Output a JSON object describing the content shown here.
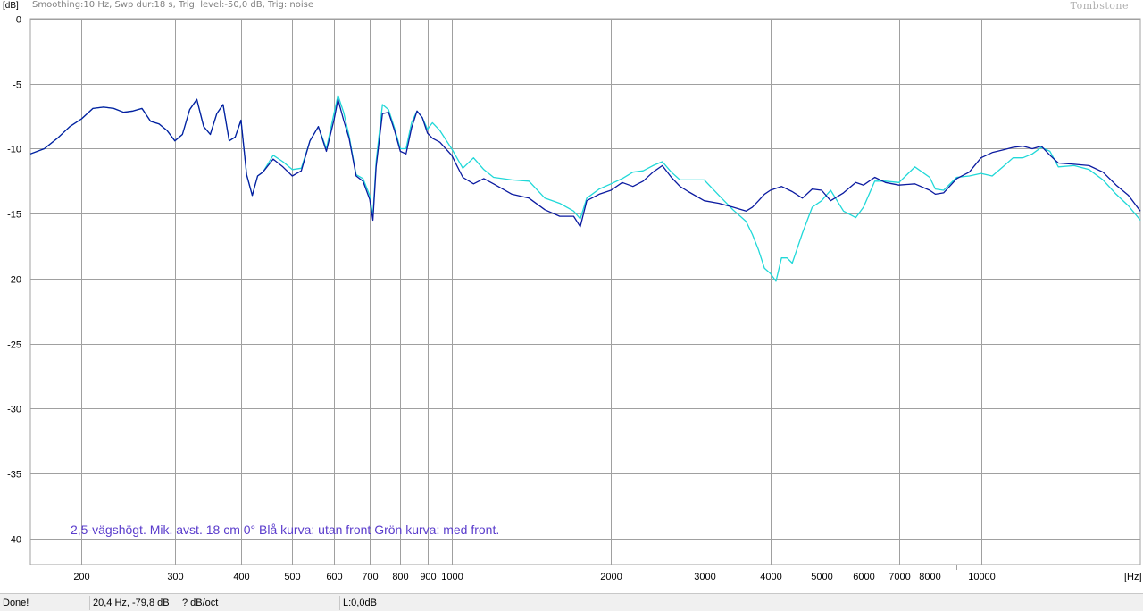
{
  "header": {
    "info": "Smoothing:10 Hz, Swp dur:18 s, Trig. level:-50,0 dB, Trig: noise",
    "brand": "Tombstone"
  },
  "status_bar": {
    "state": "Done!",
    "cursor": "20,4 Hz, -79,8 dB",
    "slope": "? dB/oct",
    "level": "L:0,0dB"
  },
  "colors": {
    "background": "#ffffff",
    "grid": "#a0a0a0",
    "axis_text": "#000000",
    "series_blue": "#0a1aa0",
    "series_cyan": "#20d8d8",
    "annotation": "#5a3ccc"
  },
  "chart_data": {
    "type": "line",
    "title": "",
    "xlabel": "",
    "ylabel": "",
    "x_unit": "[Hz]",
    "y_unit": "[dB]",
    "x_scale": "log",
    "xlim": [
      160,
      20000
    ],
    "ylim": [
      -42,
      0
    ],
    "grid": true,
    "y_ticks": [
      0,
      -5,
      -10,
      -15,
      -20,
      -25,
      -30,
      -35,
      -40
    ],
    "x_ticks": [
      200,
      300,
      400,
      500,
      600,
      700,
      800,
      900,
      1000,
      2000,
      3000,
      4000,
      5000,
      6000,
      7000,
      8000,
      10000
    ],
    "x_tick_labels": [
      "200",
      "300",
      "400",
      "500",
      "600",
      "700",
      "800",
      "900",
      "1000",
      "2000",
      "3000",
      "4000",
      "5000",
      "6000",
      "7000",
      "8000",
      "10000"
    ],
    "annotation": "2,5-vägshögt. Mik. avst. 18 cm 0° Blå kurva: utan front  Grön kurva: med front.",
    "series": [
      {
        "color": "#0a1aa0",
        "points": [
          [
            160,
            -10.4
          ],
          [
            170,
            -10
          ],
          [
            180,
            -9.2
          ],
          [
            190,
            -8.3
          ],
          [
            200,
            -7.7
          ],
          [
            210,
            -6.9
          ],
          [
            220,
            -6.8
          ],
          [
            230,
            -6.9
          ],
          [
            240,
            -7.2
          ],
          [
            250,
            -7.1
          ],
          [
            260,
            -6.9
          ],
          [
            270,
            -7.9
          ],
          [
            280,
            -8.1
          ],
          [
            290,
            -8.6
          ],
          [
            300,
            -9.4
          ],
          [
            310,
            -8.9
          ],
          [
            320,
            -7
          ],
          [
            330,
            -6.2
          ],
          [
            340,
            -8.3
          ],
          [
            350,
            -8.9
          ],
          [
            360,
            -7.3
          ],
          [
            370,
            -6.6
          ],
          [
            380,
            -9.4
          ],
          [
            390,
            -9.1
          ],
          [
            400,
            -7.8
          ],
          [
            410,
            -12
          ],
          [
            420,
            -13.6
          ],
          [
            430,
            -12.1
          ],
          [
            440,
            -11.8
          ],
          [
            460,
            -10.8
          ],
          [
            480,
            -11.4
          ],
          [
            500,
            -12.1
          ],
          [
            520,
            -11.7
          ],
          [
            540,
            -9.4
          ],
          [
            560,
            -8.3
          ],
          [
            580,
            -10.2
          ],
          [
            600,
            -7.7
          ],
          [
            610,
            -6.2
          ],
          [
            625,
            -7.8
          ],
          [
            640,
            -9.2
          ],
          [
            660,
            -12.1
          ],
          [
            680,
            -12.5
          ],
          [
            700,
            -13.9
          ],
          [
            710,
            -15.5
          ],
          [
            720,
            -11.4
          ],
          [
            740,
            -7.3
          ],
          [
            760,
            -7.2
          ],
          [
            780,
            -8.6
          ],
          [
            800,
            -10.2
          ],
          [
            820,
            -10.4
          ],
          [
            840,
            -8.4
          ],
          [
            860,
            -7.1
          ],
          [
            880,
            -7.6
          ],
          [
            900,
            -8.8
          ],
          [
            920,
            -9.2
          ],
          [
            950,
            -9.5
          ],
          [
            1000,
            -10.5
          ],
          [
            1050,
            -12.2
          ],
          [
            1100,
            -12.7
          ],
          [
            1150,
            -12.3
          ],
          [
            1200,
            -12.7
          ],
          [
            1300,
            -13.5
          ],
          [
            1400,
            -13.8
          ],
          [
            1500,
            -14.7
          ],
          [
            1600,
            -15.2
          ],
          [
            1700,
            -15.2
          ],
          [
            1750,
            -16
          ],
          [
            1800,
            -14
          ],
          [
            1900,
            -13.5
          ],
          [
            2000,
            -13.2
          ],
          [
            2100,
            -12.6
          ],
          [
            2200,
            -12.9
          ],
          [
            2300,
            -12.5
          ],
          [
            2400,
            -11.8
          ],
          [
            2500,
            -11.3
          ],
          [
            2600,
            -12.2
          ],
          [
            2700,
            -12.9
          ],
          [
            2800,
            -13.3
          ],
          [
            3000,
            -14
          ],
          [
            3200,
            -14.2
          ],
          [
            3400,
            -14.5
          ],
          [
            3600,
            -14.8
          ],
          [
            3700,
            -14.5
          ],
          [
            3800,
            -14
          ],
          [
            3900,
            -13.5
          ],
          [
            4000,
            -13.2
          ],
          [
            4200,
            -12.9
          ],
          [
            4400,
            -13.3
          ],
          [
            4600,
            -13.8
          ],
          [
            4800,
            -13.1
          ],
          [
            5000,
            -13.2
          ],
          [
            5200,
            -14
          ],
          [
            5500,
            -13.4
          ],
          [
            5800,
            -12.6
          ],
          [
            6000,
            -12.8
          ],
          [
            6300,
            -12.2
          ],
          [
            6600,
            -12.6
          ],
          [
            7000,
            -12.8
          ],
          [
            7500,
            -12.7
          ],
          [
            8000,
            -13.2
          ],
          [
            8200,
            -13.5
          ],
          [
            8500,
            -13.4
          ],
          [
            9000,
            -12.3
          ],
          [
            9500,
            -11.8
          ],
          [
            10000,
            -10.7
          ],
          [
            10500,
            -10.3
          ],
          [
            11000,
            -10.1
          ],
          [
            11500,
            -9.9
          ],
          [
            12000,
            -9.8
          ],
          [
            12500,
            -10
          ],
          [
            13000,
            -9.8
          ],
          [
            13500,
            -10.5
          ],
          [
            14000,
            -11.1
          ],
          [
            15000,
            -11.2
          ],
          [
            16000,
            -11.3
          ],
          [
            17000,
            -11.8
          ],
          [
            18000,
            -12.8
          ],
          [
            19000,
            -13.6
          ],
          [
            20000,
            -14.8
          ]
        ]
      },
      {
        "color": "#20d8d8",
        "points": [
          [
            160,
            -10.4
          ],
          [
            170,
            -10
          ],
          [
            180,
            -9.2
          ],
          [
            190,
            -8.3
          ],
          [
            200,
            -7.7
          ],
          [
            210,
            -6.9
          ],
          [
            220,
            -6.8
          ],
          [
            230,
            -6.9
          ],
          [
            240,
            -7.2
          ],
          [
            250,
            -7.1
          ],
          [
            260,
            -6.9
          ],
          [
            270,
            -7.9
          ],
          [
            280,
            -8.1
          ],
          [
            290,
            -8.6
          ],
          [
            300,
            -9.4
          ],
          [
            310,
            -8.9
          ],
          [
            320,
            -7
          ],
          [
            330,
            -6.2
          ],
          [
            340,
            -8.3
          ],
          [
            350,
            -8.9
          ],
          [
            360,
            -7.3
          ],
          [
            370,
            -6.6
          ],
          [
            380,
            -9.4
          ],
          [
            390,
            -9.1
          ],
          [
            400,
            -7.8
          ],
          [
            410,
            -12
          ],
          [
            420,
            -13.6
          ],
          [
            430,
            -12.1
          ],
          [
            440,
            -11.8
          ],
          [
            460,
            -10.5
          ],
          [
            480,
            -11
          ],
          [
            500,
            -11.6
          ],
          [
            520,
            -11.5
          ],
          [
            540,
            -9.4
          ],
          [
            560,
            -8.3
          ],
          [
            580,
            -10
          ],
          [
            600,
            -7.2
          ],
          [
            610,
            -5.9
          ],
          [
            625,
            -7.2
          ],
          [
            640,
            -9
          ],
          [
            660,
            -12
          ],
          [
            680,
            -12.3
          ],
          [
            700,
            -13.6
          ],
          [
            710,
            -15.2
          ],
          [
            720,
            -11
          ],
          [
            740,
            -6.6
          ],
          [
            760,
            -7
          ],
          [
            780,
            -8.4
          ],
          [
            800,
            -10
          ],
          [
            820,
            -10
          ],
          [
            840,
            -8
          ],
          [
            860,
            -7.1
          ],
          [
            880,
            -7.6
          ],
          [
            900,
            -8.5
          ],
          [
            920,
            -8
          ],
          [
            950,
            -8.6
          ],
          [
            1000,
            -10
          ],
          [
            1050,
            -11.5
          ],
          [
            1100,
            -10.7
          ],
          [
            1150,
            -11.6
          ],
          [
            1200,
            -12.2
          ],
          [
            1300,
            -12.4
          ],
          [
            1400,
            -12.5
          ],
          [
            1500,
            -13.8
          ],
          [
            1600,
            -14.2
          ],
          [
            1700,
            -14.8
          ],
          [
            1750,
            -15.4
          ],
          [
            1800,
            -13.8
          ],
          [
            1900,
            -13.1
          ],
          [
            2000,
            -12.7
          ],
          [
            2100,
            -12.3
          ],
          [
            2200,
            -11.8
          ],
          [
            2300,
            -11.7
          ],
          [
            2400,
            -11.3
          ],
          [
            2500,
            -11
          ],
          [
            2600,
            -11.8
          ],
          [
            2700,
            -12.4
          ],
          [
            2800,
            -12.4
          ],
          [
            3000,
            -12.4
          ],
          [
            3200,
            -13.6
          ],
          [
            3400,
            -14.7
          ],
          [
            3600,
            -15.6
          ],
          [
            3700,
            -16.6
          ],
          [
            3800,
            -17.8
          ],
          [
            3900,
            -19.2
          ],
          [
            4000,
            -19.6
          ],
          [
            4100,
            -20.2
          ],
          [
            4200,
            -18.4
          ],
          [
            4300,
            -18.4
          ],
          [
            4400,
            -18.8
          ],
          [
            4600,
            -16.5
          ],
          [
            4800,
            -14.5
          ],
          [
            5000,
            -14
          ],
          [
            5200,
            -13.2
          ],
          [
            5500,
            -14.8
          ],
          [
            5800,
            -15.3
          ],
          [
            6000,
            -14.5
          ],
          [
            6300,
            -12.5
          ],
          [
            6600,
            -12.5
          ],
          [
            7000,
            -12.6
          ],
          [
            7500,
            -11.4
          ],
          [
            8000,
            -12.2
          ],
          [
            8200,
            -13.1
          ],
          [
            8500,
            -13.2
          ],
          [
            9000,
            -12.2
          ],
          [
            9500,
            -12.1
          ],
          [
            10000,
            -11.9
          ],
          [
            10500,
            -12.1
          ],
          [
            11000,
            -11.4
          ],
          [
            11500,
            -10.7
          ],
          [
            12000,
            -10.7
          ],
          [
            12500,
            -10.4
          ],
          [
            13000,
            -9.9
          ],
          [
            13500,
            -10.2
          ],
          [
            14000,
            -11.4
          ],
          [
            15000,
            -11.3
          ],
          [
            16000,
            -11.6
          ],
          [
            17000,
            -12.4
          ],
          [
            18000,
            -13.5
          ],
          [
            19000,
            -14.4
          ],
          [
            20000,
            -15.5
          ]
        ]
      }
    ]
  }
}
